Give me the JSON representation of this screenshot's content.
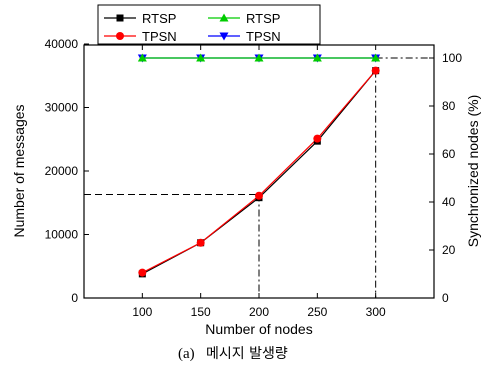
{
  "chart_data": {
    "type": "line",
    "caption_prefix": "(a)",
    "caption_text": "메시지 발생량",
    "xlabel": "Number of nodes",
    "ylabel_left": "Number of messages",
    "ylabel_right": "Synchronized nodes (%)",
    "x": [
      100,
      150,
      200,
      250,
      300
    ],
    "xlim": [
      50,
      350
    ],
    "xticks": [
      "100",
      "150",
      "200",
      "250",
      "300"
    ],
    "ylim_left": [
      0,
      40000
    ],
    "yticks_left": [
      "0",
      "10000",
      "20000",
      "30000",
      "40000"
    ],
    "ylim_right": [
      0,
      105
    ],
    "yticks_right": [
      "0",
      "20",
      "40",
      "60",
      "80",
      "100"
    ],
    "grid": false,
    "legend_position": "top-left",
    "series": [
      {
        "name": "RTSP",
        "axis": "left",
        "color": "#000000",
        "marker": "square",
        "values": [
          3800,
          8700,
          15800,
          24700,
          35800
        ]
      },
      {
        "name": "TPSN",
        "axis": "left",
        "color": "#ff0000",
        "marker": "circle",
        "values": [
          4000,
          8700,
          16100,
          25100,
          35800
        ]
      },
      {
        "name": "RTSP",
        "axis": "right",
        "color": "#00cc00",
        "marker": "triangle-up",
        "values": [
          100,
          100,
          100,
          100,
          100
        ]
      },
      {
        "name": "TPSN",
        "axis": "right",
        "color": "#0000ff",
        "marker": "triangle-down",
        "values": [
          100,
          100,
          100,
          100,
          100
        ]
      }
    ],
    "annotations": [
      {
        "style": "dash",
        "from_left_y": 16300,
        "to_x": 200
      },
      {
        "style": "dash-dot",
        "at_x": 200,
        "from_left_y": 16300
      },
      {
        "style": "dash-dot",
        "at_x": 300,
        "from_left_y": 35800
      },
      {
        "style": "dash-dot",
        "from_x": 300,
        "right_y": 100
      }
    ]
  }
}
